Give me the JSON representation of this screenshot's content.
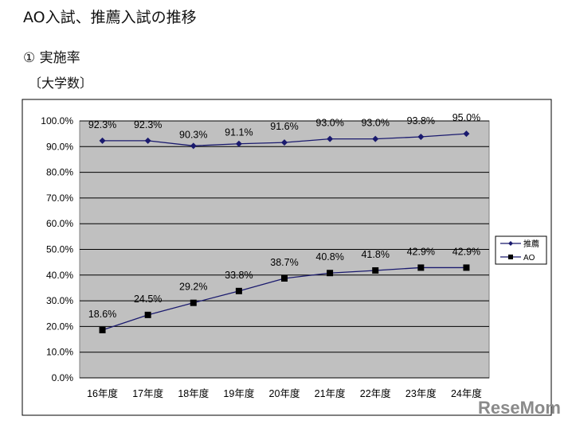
{
  "header": {
    "title": "AO入試、推薦入試の推移",
    "subtitle": "①  実施率",
    "unit_label": "〔大学数〕"
  },
  "watermark": "ReseMom",
  "chart_data": {
    "type": "line",
    "title": "",
    "xlabel": "",
    "ylabel": "",
    "categories": [
      "16年度",
      "17年度",
      "18年度",
      "19年度",
      "20年度",
      "21年度",
      "22年度",
      "23年度",
      "24年度"
    ],
    "ylim": [
      0,
      100
    ],
    "yticks": [
      "0.0%",
      "10.0%",
      "20.0%",
      "30.0%",
      "40.0%",
      "50.0%",
      "60.0%",
      "70.0%",
      "80.0%",
      "90.0%",
      "100.0%"
    ],
    "grid": true,
    "plot_background": "#c0c0c0",
    "legend_position": "right",
    "series": [
      {
        "name": "推薦",
        "marker": "diamond",
        "color": "#1a1a6e",
        "values": [
          92.3,
          92.3,
          90.3,
          91.1,
          91.6,
          93.0,
          93.0,
          93.8,
          95.0
        ],
        "labels": [
          "92.3%",
          "92.3%",
          "90.3%",
          "91.1%",
          "91.6%",
          "93.0%",
          "93.0%",
          "93.8%",
          "95.0%"
        ]
      },
      {
        "name": "AO",
        "marker": "square",
        "color": "#000000",
        "line_color": "#1a1a6e",
        "values": [
          18.6,
          24.5,
          29.2,
          33.8,
          38.7,
          40.8,
          41.8,
          42.9,
          42.9
        ],
        "labels": [
          "18.6%",
          "24.5%",
          "29.2%",
          "33.8%",
          "38.7%",
          "40.8%",
          "41.8%",
          "42.9%",
          "42.9%"
        ]
      }
    ]
  }
}
